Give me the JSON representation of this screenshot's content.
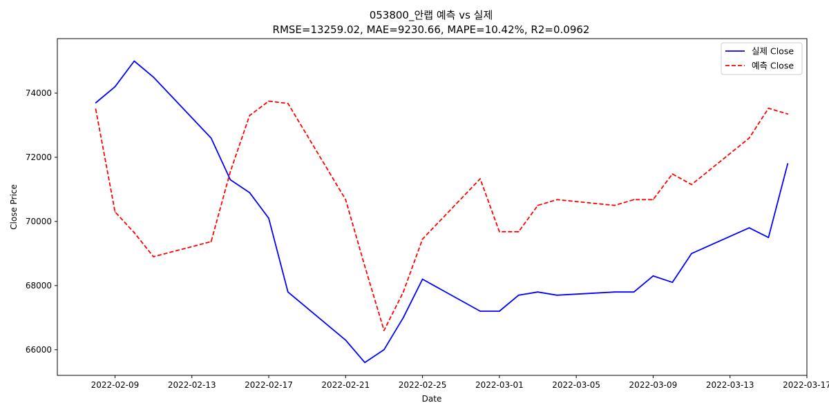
{
  "chart_data": {
    "type": "line",
    "title": "053800_안랩 예측 vs 실제",
    "subtitle": "RMSE=13259.02, MAE=9230.66, MAPE=10.42%, R2=0.0962",
    "xlabel": "Date",
    "ylabel": "Close Price",
    "x_ticks": [
      "2022-02-09",
      "2022-02-13",
      "2022-02-17",
      "2022-02-21",
      "2022-02-25",
      "2022-03-01",
      "2022-03-05",
      "2022-03-09",
      "2022-03-13",
      "2022-03-17"
    ],
    "y_ticks": [
      66000,
      68000,
      70000,
      72000,
      74000
    ],
    "xlim": [
      "2022-02-06",
      "2022-03-17"
    ],
    "ylim": [
      65200,
      75700
    ],
    "legend_position": "top-right",
    "grid": false,
    "series": [
      {
        "name": "실제 Close",
        "color": "#0000ff",
        "style": "solid",
        "points": [
          {
            "x": "2022-02-08",
            "y": 73700
          },
          {
            "x": "2022-02-09",
            "y": 74200
          },
          {
            "x": "2022-02-10",
            "y": 75000
          },
          {
            "x": "2022-02-11",
            "y": 74500
          },
          {
            "x": "2022-02-14",
            "y": 72600
          },
          {
            "x": "2022-02-15",
            "y": 71300
          },
          {
            "x": "2022-02-16",
            "y": 70900
          },
          {
            "x": "2022-02-17",
            "y": 70100
          },
          {
            "x": "2022-02-18",
            "y": 67800
          },
          {
            "x": "2022-02-21",
            "y": 66300
          },
          {
            "x": "2022-02-22",
            "y": 65600
          },
          {
            "x": "2022-02-23",
            "y": 66000
          },
          {
            "x": "2022-02-24",
            "y": 67000
          },
          {
            "x": "2022-02-25",
            "y": 68200
          },
          {
            "x": "2022-02-28",
            "y": 67200
          },
          {
            "x": "2022-03-01",
            "y": 67200
          },
          {
            "x": "2022-03-02",
            "y": 67700
          },
          {
            "x": "2022-03-03",
            "y": 67800
          },
          {
            "x": "2022-03-04",
            "y": 67700
          },
          {
            "x": "2022-03-07",
            "y": 67800
          },
          {
            "x": "2022-03-08",
            "y": 67800
          },
          {
            "x": "2022-03-09",
            "y": 68300
          },
          {
            "x": "2022-03-10",
            "y": 68100
          },
          {
            "x": "2022-03-11",
            "y": 69000
          },
          {
            "x": "2022-03-14",
            "y": 69800
          },
          {
            "x": "2022-03-15",
            "y": 69500
          },
          {
            "x": "2022-03-16",
            "y": 71800
          }
        ]
      },
      {
        "name": "예측 Close",
        "color": "#ff0000",
        "style": "dashed",
        "points": [
          {
            "x": "2022-02-08",
            "y": 73500
          },
          {
            "x": "2022-02-09",
            "y": 70300
          },
          {
            "x": "2022-02-10",
            "y": 69650
          },
          {
            "x": "2022-02-11",
            "y": 68900
          },
          {
            "x": "2022-02-14",
            "y": 69370
          },
          {
            "x": "2022-02-15",
            "y": 71550
          },
          {
            "x": "2022-02-16",
            "y": 73300
          },
          {
            "x": "2022-02-17",
            "y": 73750
          },
          {
            "x": "2022-02-18",
            "y": 73680
          },
          {
            "x": "2022-02-21",
            "y": 70680
          },
          {
            "x": "2022-02-22",
            "y": 68600
          },
          {
            "x": "2022-02-23",
            "y": 66600
          },
          {
            "x": "2022-02-24",
            "y": 67800
          },
          {
            "x": "2022-02-25",
            "y": 69450
          },
          {
            "x": "2022-02-28",
            "y": 71330
          },
          {
            "x": "2022-03-01",
            "y": 69680
          },
          {
            "x": "2022-03-02",
            "y": 69680
          },
          {
            "x": "2022-03-03",
            "y": 70500
          },
          {
            "x": "2022-03-04",
            "y": 70680
          },
          {
            "x": "2022-03-07",
            "y": 70500
          },
          {
            "x": "2022-03-08",
            "y": 70680
          },
          {
            "x": "2022-03-09",
            "y": 70680
          },
          {
            "x": "2022-03-10",
            "y": 71480
          },
          {
            "x": "2022-03-11",
            "y": 71150
          },
          {
            "x": "2022-03-14",
            "y": 72600
          },
          {
            "x": "2022-03-15",
            "y": 73530
          },
          {
            "x": "2022-03-16",
            "y": 73350
          }
        ]
      }
    ]
  }
}
